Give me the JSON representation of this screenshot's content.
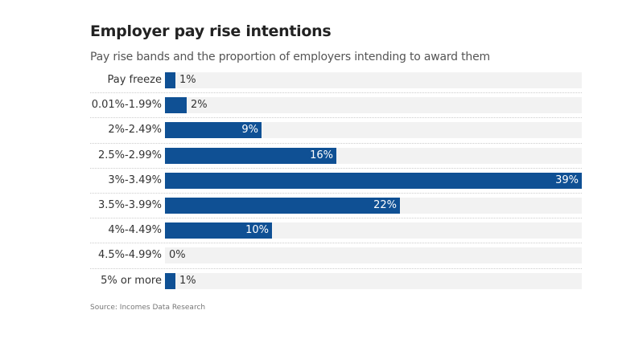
{
  "chart_data": {
    "type": "bar",
    "orientation": "horizontal",
    "title": "Employer pay rise intentions",
    "subtitle": "Pay rise bands and the proportion of employers intending to award them",
    "categories": [
      "Pay freeze",
      "0.01%-1.99%",
      "2%-2.49%",
      "2.5%-2.99%",
      "3%-3.49%",
      "3.5%-3.99%",
      "4%-4.49%",
      "4.5%-4.99%",
      "5% or more"
    ],
    "values": [
      1,
      2,
      9,
      16,
      39,
      22,
      10,
      0,
      1
    ],
    "value_labels": [
      "1%",
      "2%",
      "9%",
      "16%",
      "39%",
      "22%",
      "10%",
      "0%",
      "1%"
    ],
    "xlim": [
      0,
      39
    ],
    "unit": "%",
    "source": "Source: Incomes Data Research",
    "bar_color": "#0f5094",
    "track_color": "#f2f2f2"
  }
}
